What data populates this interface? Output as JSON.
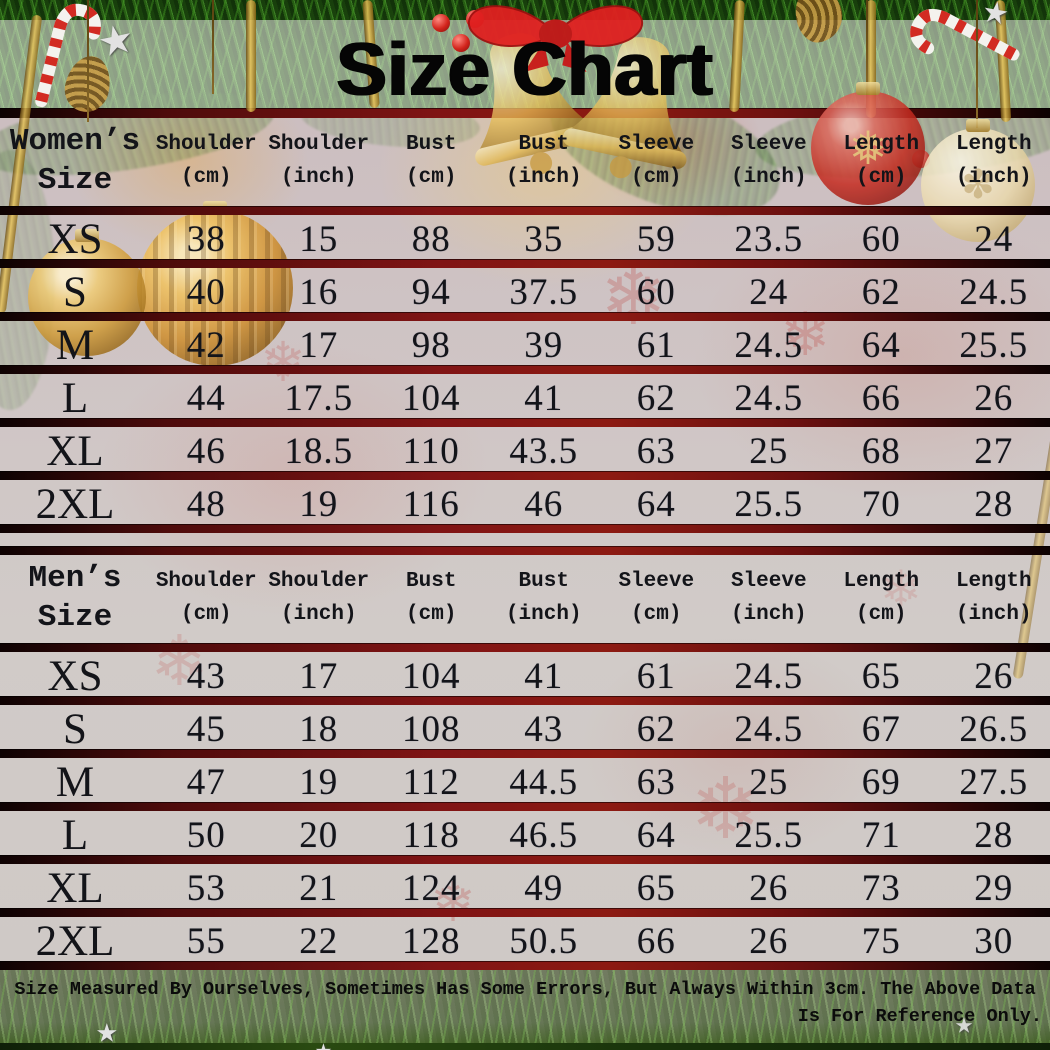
{
  "title": "Size Chart",
  "footer": {
    "line1": "Size Measured By Ourselves, Sometimes Has Some Errors, But Always Within 3cm. The Above Data",
    "line2": "Is For Reference Only."
  },
  "colors": {
    "separator_red": "#801414",
    "panel_tint": "#cfc5c5",
    "pine_green": "#2c5f18",
    "title_text": "#050505",
    "table_text": "#131419"
  },
  "decorations": {
    "icons": [
      "red-bow-icon",
      "gold-bell-icon",
      "candy-cane-icon",
      "star-icon",
      "bauble-icon",
      "pinecone-icon",
      "holly-berry-icon",
      "snowflake-icon",
      "gold-ribbon-icon"
    ]
  },
  "chart_data": [
    {
      "type": "table",
      "title": "Women’s\nSize",
      "columns": [
        "Shoulder\n(cm)",
        "Shoulder\n(inch)",
        "Bust\n(cm)",
        "Bust\n(inch)",
        "Sleeve\n(cm)",
        "Sleeve\n(inch)",
        "Length\n(cm)",
        "Length\n(inch)"
      ],
      "rows": [
        {
          "size": "XS",
          "values": [
            "38",
            "15",
            "88",
            "35",
            "59",
            "23.5",
            "60",
            "24"
          ]
        },
        {
          "size": "S",
          "values": [
            "40",
            "16",
            "94",
            "37.5",
            "60",
            "24",
            "62",
            "24.5"
          ]
        },
        {
          "size": "M",
          "values": [
            "42",
            "17",
            "98",
            "39",
            "61",
            "24.5",
            "64",
            "25.5"
          ]
        },
        {
          "size": "L",
          "values": [
            "44",
            "17.5",
            "104",
            "41",
            "62",
            "24.5",
            "66",
            "26"
          ]
        },
        {
          "size": "XL",
          "values": [
            "46",
            "18.5",
            "110",
            "43.5",
            "63",
            "25",
            "68",
            "27"
          ]
        },
        {
          "size": "2XL",
          "values": [
            "48",
            "19",
            "116",
            "46",
            "64",
            "25.5",
            "70",
            "28"
          ]
        }
      ]
    },
    {
      "type": "table",
      "title": "Men’s\nSize",
      "columns": [
        "Shoulder\n(cm)",
        "Shoulder\n(inch)",
        "Bust\n(cm)",
        "Bust\n(inch)",
        "Sleeve\n(cm)",
        "Sleeve\n(inch)",
        "Length\n(cm)",
        "Length\n(inch)"
      ],
      "rows": [
        {
          "size": "XS",
          "values": [
            "43",
            "17",
            "104",
            "41",
            "61",
            "24.5",
            "65",
            "26"
          ]
        },
        {
          "size": "S",
          "values": [
            "45",
            "18",
            "108",
            "43",
            "62",
            "24.5",
            "67",
            "26.5"
          ]
        },
        {
          "size": "M",
          "values": [
            "47",
            "19",
            "112",
            "44.5",
            "63",
            "25",
            "69",
            "27.5"
          ]
        },
        {
          "size": "L",
          "values": [
            "50",
            "20",
            "118",
            "46.5",
            "64",
            "25.5",
            "71",
            "28"
          ]
        },
        {
          "size": "XL",
          "values": [
            "53",
            "21",
            "124",
            "49",
            "65",
            "26",
            "73",
            "29"
          ]
        },
        {
          "size": "2XL",
          "values": [
            "55",
            "22",
            "128",
            "50.5",
            "66",
            "26",
            "75",
            "30"
          ]
        }
      ]
    }
  ]
}
